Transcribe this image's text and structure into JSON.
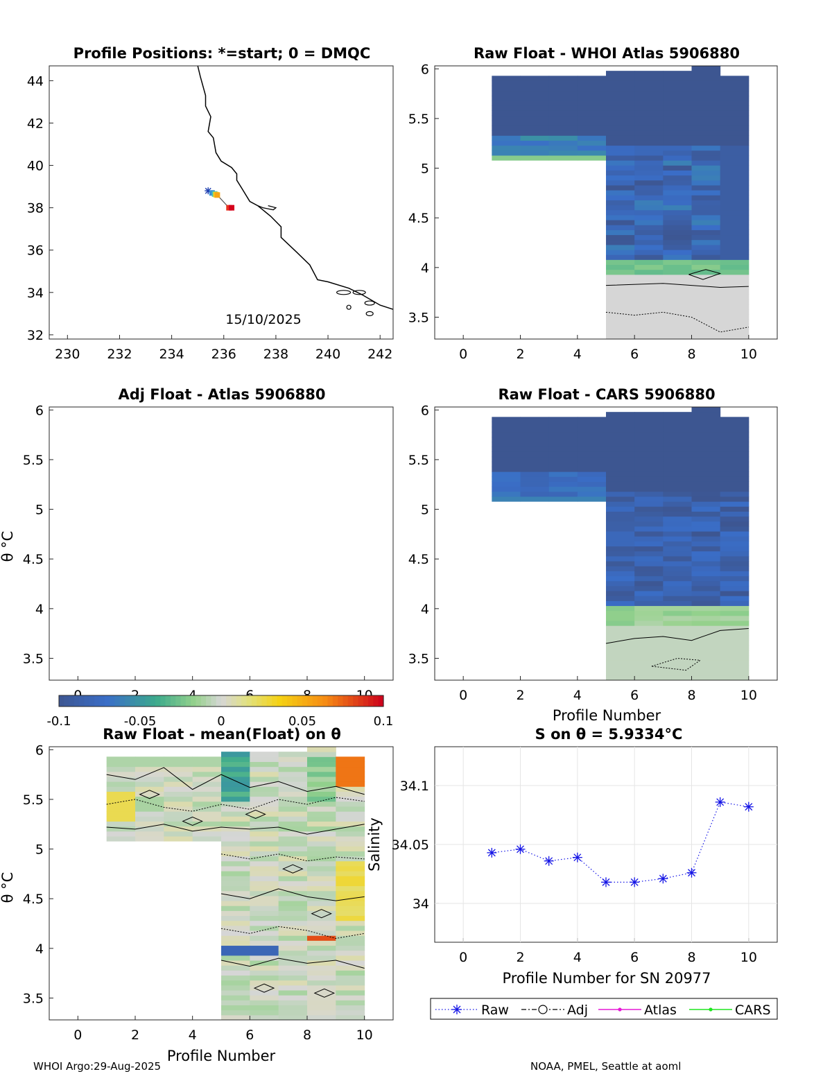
{
  "chart_data": [
    {
      "id": "map",
      "type": "scatter",
      "title": "Profile Positions: *=start; 0 = DMQC",
      "xlim": [
        229.3,
        242.5
      ],
      "ylim": [
        31.8,
        44.7
      ],
      "xticks": [
        "230",
        "232",
        "234",
        "236",
        "238",
        "240",
        "242"
      ],
      "yticks": [
        "32",
        "34",
        "36",
        "38",
        "40",
        "42",
        "44"
      ],
      "annotation": "15/10/2025",
      "track": [
        {
          "lon": 235.4,
          "lat": 38.8,
          "color": "#1f3fb0"
        },
        {
          "lon": 235.55,
          "lat": 38.7,
          "color": "#3b8fd6"
        },
        {
          "lon": 235.65,
          "lat": 38.65,
          "color": "#49c2b3"
        },
        {
          "lon": 235.7,
          "lat": 38.62,
          "color": "#f4d21c"
        },
        {
          "lon": 235.75,
          "lat": 38.6,
          "color": "#f6a618"
        },
        {
          "lon": 236.2,
          "lat": 38.0,
          "color": "#e8321c"
        },
        {
          "lon": 236.3,
          "lat": 38.0,
          "color": "#d5001c"
        }
      ]
    },
    {
      "id": "atlas",
      "type": "heatmap",
      "title": "Raw Float - WHOI Atlas  5906880",
      "xlim": [
        -1,
        11
      ],
      "ylim": [
        3.28,
        6.03
      ],
      "xticks": [
        "0",
        "2",
        "4",
        "6",
        "8",
        "10"
      ],
      "yticks": [
        "3.5",
        "4",
        "4.5",
        "5",
        "5.5",
        "6"
      ],
      "xlabel": ""
    },
    {
      "id": "adj",
      "type": "heatmap",
      "title": "Adj Float - Atlas  5906880",
      "xlim": [
        -1,
        11
      ],
      "ylim": [
        3.28,
        6.03
      ],
      "xticks": [
        "0",
        "2",
        "4",
        "6",
        "8",
        "10"
      ],
      "yticks": [
        "3.5",
        "4",
        "4.5",
        "5",
        "5.5",
        "6"
      ],
      "ylabel": "θ °C"
    },
    {
      "id": "cars",
      "type": "heatmap",
      "title": "Raw Float - CARS  5906880",
      "xlim": [
        -1,
        11
      ],
      "ylim": [
        3.28,
        6.03
      ],
      "xticks": [
        "0",
        "2",
        "4",
        "6",
        "8",
        "10"
      ],
      "yticks": [
        "3.5",
        "4",
        "4.5",
        "5",
        "5.5",
        "6"
      ],
      "xlabel": "Profile Number"
    },
    {
      "id": "mean",
      "type": "heatmap",
      "title": "Raw Float - mean(Float) on θ",
      "xlim": [
        -1,
        11
      ],
      "ylim": [
        3.28,
        6.03
      ],
      "xticks": [
        "0",
        "2",
        "4",
        "6",
        "8",
        "10"
      ],
      "yticks": [
        "3.5",
        "4",
        "4.5",
        "5",
        "5.5",
        "6"
      ],
      "xlabel": "Profile Number",
      "ylabel": "θ °C"
    },
    {
      "id": "salinity",
      "type": "line",
      "title": "S on θ = 5.9334°C",
      "xlabel": "Profile Number for SN 20977",
      "ylabel": "Salinity",
      "xlim": [
        -1,
        11
      ],
      "ylim": [
        33.967,
        34.133
      ],
      "xticks": [
        "0",
        "2",
        "4",
        "6",
        "8",
        "10"
      ],
      "yticks": [
        "34",
        "34.05",
        "34.1"
      ],
      "series": [
        {
          "name": "Raw",
          "x": [
            1,
            2,
            3,
            4,
            5,
            6,
            7,
            8,
            9,
            10
          ],
          "values": [
            34.043,
            34.046,
            34.036,
            34.039,
            34.018,
            34.018,
            34.021,
            34.026,
            34.086,
            34.082
          ]
        }
      ],
      "legend": [
        "Raw",
        "Adj",
        "Atlas",
        "CARS"
      ]
    },
    {
      "id": "colorbar",
      "type": "colorbar",
      "range": [
        -0.1,
        0.1
      ],
      "ticks": [
        "-0.1",
        "-0.05",
        "0",
        "0.05",
        "0.1"
      ]
    }
  ],
  "footer": {
    "left": "WHOI Argo:29-Aug-2025",
    "right": "NOAA, PMEL, Seattle at aoml"
  },
  "colors": {
    "deep_blue": "#3d5691",
    "neutral": "#d6d6d6",
    "raw_series": "#1414e6",
    "adj_series": "#000000",
    "atlas_series": "#e619d6",
    "cars_series": "#1ee61e"
  }
}
